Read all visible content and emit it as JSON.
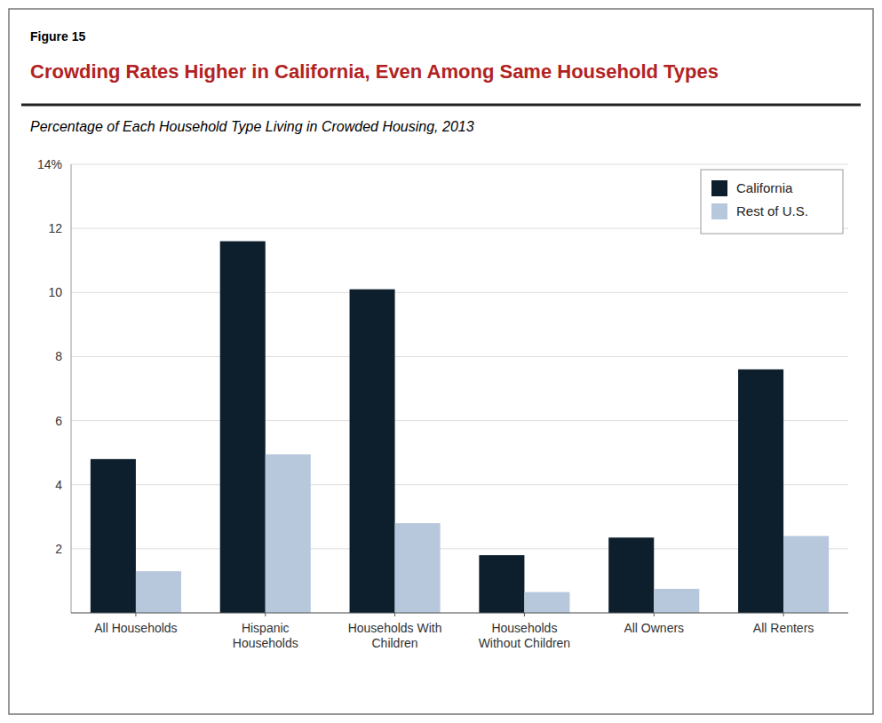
{
  "chart_data": {
    "type": "bar",
    "title": "Crowding Rates Higher in California, Even Among Same Household Types",
    "subtitle": "Percentage of Each Household Type Living in Crowded Housing, 2013",
    "annotations": [
      "Figure 15"
    ],
    "categories": [
      "All Households",
      "Hispanic\nHouseholds",
      "Households With\nChildren",
      "Households\nWithout Children",
      "All Owners",
      "All Renters"
    ],
    "series": [
      {
        "name": "California",
        "color": "#0d1f2d",
        "values": [
          4.8,
          11.6,
          10.1,
          1.8,
          2.35,
          7.6
        ]
      },
      {
        "name": "Rest of U.S.",
        "color": "#b8c8dc",
        "values": [
          1.3,
          4.95,
          2.8,
          0.65,
          0.75,
          2.4
        ]
      }
    ],
    "ylim": [
      0,
      14
    ],
    "yticks": [
      {
        "value": 0,
        "label": null
      },
      2,
      4,
      6,
      8,
      10,
      12,
      {
        "value": 14,
        "label": "14%"
      }
    ],
    "grid": true,
    "legend": "top-right"
  }
}
